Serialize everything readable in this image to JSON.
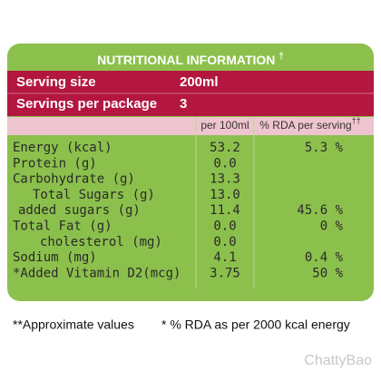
{
  "header": {
    "title": "NUTRITIONAL INFORMATION",
    "title_mark": "†"
  },
  "serving": [
    {
      "label": "Serving size",
      "value": "200ml"
    },
    {
      "label": "Servings per package",
      "value": "3"
    }
  ],
  "columns": {
    "per_100ml": "per 100ml",
    "rda": "% RDA per serving",
    "rda_mark": "††"
  },
  "table": {
    "rows": [
      {
        "label": "Energy (kcal)",
        "per_100ml": "53.2",
        "rda": "5.3 %"
      },
      {
        "label": "Protein (g)",
        "per_100ml": "0.0"
      },
      {
        "label": "Carbohydrate (g)",
        "per_100ml": "13.3"
      },
      {
        "label": "Total Sugars (g)",
        "per_100ml": "13.0"
      },
      {
        "label": "added sugars (g)",
        "per_100ml": "11.4",
        "rda": "45.6 %"
      },
      {
        "label": "Total Fat (g)",
        "per_100ml": "0.0",
        "rda": "0 %"
      },
      {
        "label": "cholesterol (mg)",
        "per_100ml": "0.0"
      },
      {
        "label": "Sodium (mg)",
        "per_100ml": "4.1",
        "rda": "0.4 %"
      },
      {
        "label": "*Added Vitamin D2(mcg)",
        "per_100ml": "3.75",
        "rda": "50 %"
      }
    ]
  },
  "footer": {
    "note_1": "**Approximate values",
    "note_2": "* % RDA as per 2000 kcal energy"
  },
  "watermark": "ChattyBao"
}
